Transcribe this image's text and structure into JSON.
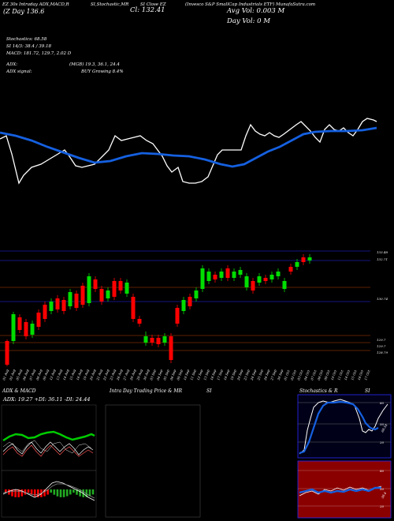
{
  "header": {
    "chart_id": "EZ 30s Intraday ADX,MACD,R",
    "title_line2": "(Z Day",
    "day_value": "136.6",
    "si_label": "SI,Stochastic,MR",
    "close_label": "Cl: 132.41",
    "price_label": "SI Close EZ",
    "company": "(Invesco S&P SmallCap Industrials ETF) MunafaSutra.com",
    "avg_vol": "Avg Vol: 0.003 M",
    "day_vol": "Day Vol: 0  M",
    "stochastics": "Stochastics: 68.58",
    "si_line": "SI  14/3: 38.4  / 39.18",
    "macd": "MACD: 181.72, 129.7, 2.02  D",
    "adx": "ADX:",
    "adx_vals": "(MGB) 19.3,  36.1,  24.4",
    "adx_signal_label": "ADX  signal:",
    "adx_signal": "BUY Growing 8.4%"
  },
  "price_levels": [
    "133.48",
    "132.71",
    "130.74",
    "129.7",
    "129.7",
    "128.79"
  ],
  "x_labels": [
    "01 Aug",
    "02 Aug",
    "05 Aug",
    "06 Aug",
    "07 Aug",
    "08 Aug",
    "09 Aug",
    "12 Aug",
    "13 Aug",
    "14 Aug",
    "15 Aug",
    "16 Aug",
    "19 Aug",
    "20 Aug",
    "21 Aug",
    "22 Aug",
    "23 Aug",
    "26 Aug",
    "27 Aug",
    "28 Aug",
    "29 Aug",
    "30 Aug",
    "03 Sep",
    "04 Sep",
    "05 Sep",
    "06 Sep",
    "09 Sep",
    "10 Sep",
    "11 Sep",
    "12 Sep",
    "13 Sep",
    "16 Sep",
    "17 Sep",
    "18 Sep",
    "19 Sep",
    "20 Sep",
    "23 Sep",
    "24 Sep",
    "25 Sep",
    "26 Sep",
    "27 Sep",
    "30 Sep",
    "01 Oct",
    "02 Oct",
    "03 Oct",
    "04 Oct",
    "07 Oct",
    "08 Oct",
    "09 Oct",
    "10 Oct",
    "11 Oct",
    "14 Oct",
    "15 Oct",
    "16 Oct",
    "17 Oct"
  ],
  "panels": {
    "adx_title": "ADX  & MACD",
    "adx_readout": "ADX: 19.27  +DI: 36.11  -DI: 24.44",
    "intraday_title": "Intra  Day Trading Price  & MR",
    "intraday_si": "SI",
    "stoch_title": "Stochastics & R",
    "stoch_si": "SI",
    "stoch_levels": [
      "80",
      "50",
      "20"
    ],
    "stoch_value": "68.58",
    "rsi_levels": [
      "80",
      "50",
      "20"
    ],
    "rsi_value": "38.4"
  },
  "colors": {
    "up": "#00dd00",
    "down": "#ff0000",
    "ma": "#1560e0",
    "grid": "#7a2a00",
    "blue_line": "#2a2aff"
  }
}
